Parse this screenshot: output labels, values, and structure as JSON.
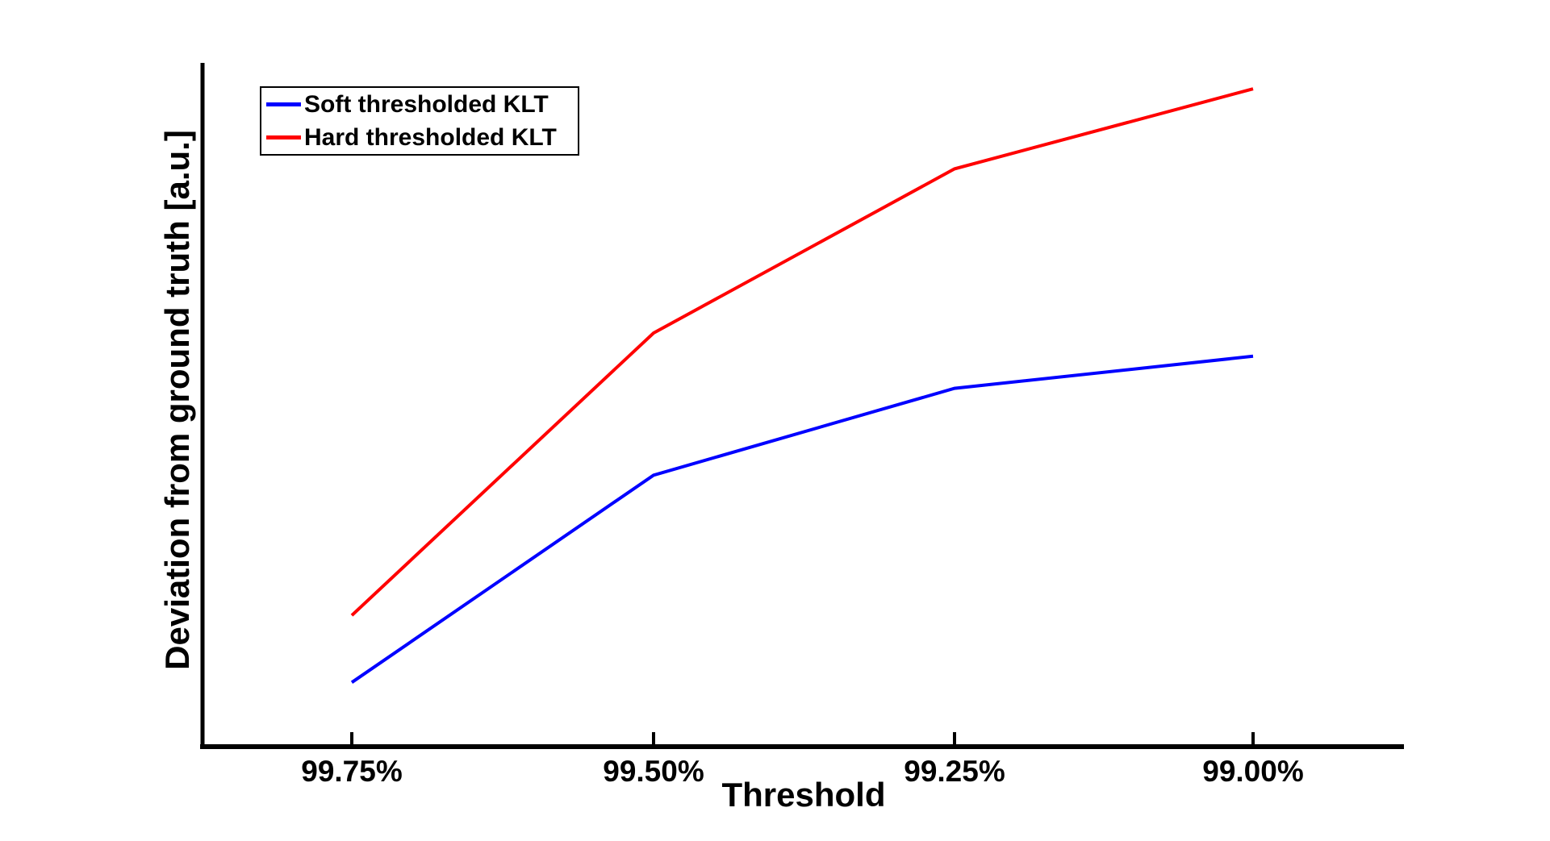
{
  "figure": {
    "background": "#ffffff"
  },
  "chart_data": {
    "type": "line",
    "title": "",
    "xlabel": "Threshold",
    "ylabel": "Deviation from ground truth [a.u.]",
    "categories": [
      "99.75%",
      "99.50%",
      "99.25%",
      "99.00%"
    ],
    "series": [
      {
        "name": "Soft thresholded KLT",
        "color": "#0000ff",
        "values": [
          0.094,
          0.397,
          0.524,
          0.571
        ]
      },
      {
        "name": "Hard thresholded KLT",
        "color": "#ff0000",
        "values": [
          0.192,
          0.605,
          0.845,
          0.962
        ]
      }
    ],
    "ylim": [
      0,
      1
    ],
    "grid": false,
    "legend_position": "top-left",
    "axis_color": "#000000"
  }
}
